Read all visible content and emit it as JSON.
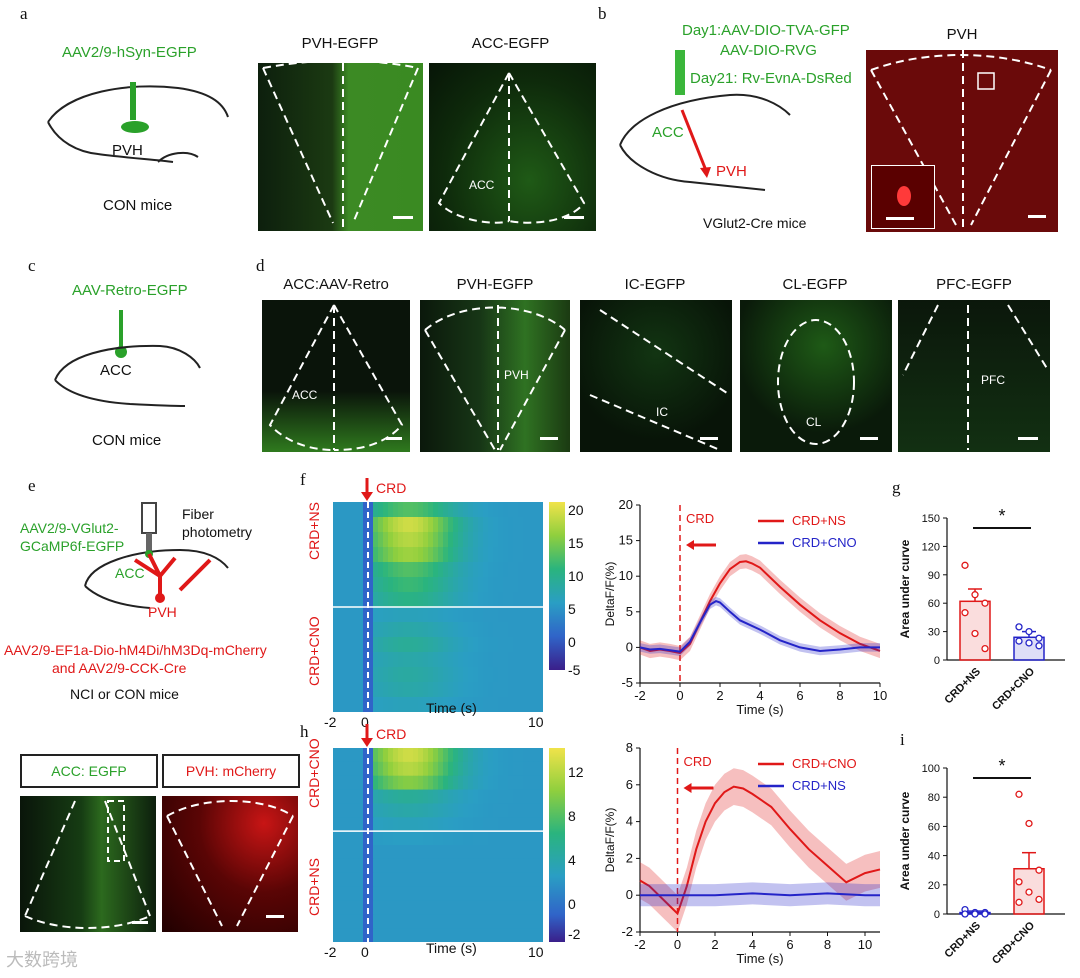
{
  "panels": {
    "a": {
      "letter": "a",
      "virus": "AAV2/9-hSyn-EGFP",
      "region": "PVH",
      "mice": "CON mice",
      "img1_title": "PVH-EGFP",
      "img2_title": "ACC-EGFP",
      "img2_inner": "ACC"
    },
    "b": {
      "letter": "b",
      "line1": "Day1:AAV-DIO-TVA-GFP",
      "line2": "AAV-DIO-RVG",
      "line3": "Day21: Rv-EvnA-DsRed",
      "acc": "ACC",
      "pvh": "PVH",
      "mice": "VGlut2-Cre mice",
      "img_title": "PVH"
    },
    "c": {
      "letter": "c",
      "virus": "AAV-Retro-EGFP",
      "region": "ACC",
      "mice": "CON mice"
    },
    "d": {
      "letter": "d",
      "titles": [
        "ACC:AAV-Retro",
        "PVH-EGFP",
        "IC-EGFP",
        "CL-EGFP",
        "PFC-EGFP"
      ],
      "inner": [
        "ACC",
        "PVH",
        "IC",
        "CL",
        "PFC"
      ]
    },
    "e": {
      "letter": "e",
      "virus_green_1": "AAV2/9-VGlut2-",
      "virus_green_2": "GCaMP6f-EGFP",
      "fiber_1": "Fiber",
      "fiber_2": "photometry",
      "acc": "ACC",
      "pvh": "PVH",
      "red_line1": "AAV2/9-EF1a-Dio-hM4Di/hM3Dq-mCherry",
      "red_line2": "and AAV2/9-CCK-Cre",
      "mice": "NCI or CON mice",
      "box1": "ACC: EGFP",
      "box2": "PVH: mCherry"
    },
    "f": {
      "letter": "f",
      "crd": "CRD",
      "row_top": "CRD+NS",
      "row_bottom": "CRD+CNO",
      "xlabel": "Time (s)",
      "xticks": [
        "-2",
        "0",
        "10"
      ],
      "cbar_ticks": [
        "20",
        "15",
        "10",
        "5",
        "0",
        "-5"
      ],
      "line_ylabel": "DeltaF/F(%)",
      "line_xlabel": "Time (s)",
      "line_yticks": [
        "20",
        "15",
        "10",
        "5",
        "0",
        "-5"
      ],
      "line_xticks": [
        "-2",
        "0",
        "2",
        "4",
        "6",
        "8",
        "10"
      ],
      "legend": [
        "CRD+NS",
        "CRD+CNO"
      ],
      "crd_label": "CRD"
    },
    "g": {
      "letter": "g",
      "ylabel": "Area under curve",
      "yticks": [
        "150",
        "120",
        "90",
        "60",
        "30",
        "0"
      ],
      "sig": "*",
      "cats": [
        "CRD+NS",
        "CRD+CNO"
      ]
    },
    "h": {
      "letter": "h",
      "crd": "CRD",
      "row_top": "CRD+CNO",
      "row_bottom": "CRD+NS",
      "xlabel": "Time (s)",
      "xticks": [
        "-2",
        "0",
        "10"
      ],
      "cbar_ticks": [
        "12",
        "8",
        "4",
        "0",
        "-2"
      ],
      "line_ylabel": "DeltaF/F(%)",
      "line_xlabel": "Time (s)",
      "line_yticks": [
        "8",
        "6",
        "4",
        "2",
        "0",
        "-2"
      ],
      "line_xticks": [
        "-2",
        "0",
        "2",
        "4",
        "6",
        "8",
        "10"
      ],
      "legend": [
        "CRD+CNO",
        "CRD+NS"
      ],
      "crd_label": "CRD"
    },
    "i": {
      "letter": "i",
      "ylabel": "Area under curve",
      "yticks": [
        "100",
        "80",
        "60",
        "40",
        "20",
        "0"
      ],
      "sig": "*",
      "cats": [
        "CRD+NS",
        "CRD+CNO"
      ]
    }
  },
  "watermark": "大数跨境",
  "colors": {
    "green": "#2aa12a",
    "red": "#e01818",
    "blue": "#2424c8"
  },
  "chart_data": [
    {
      "type": "line",
      "id": "f-line",
      "title": "",
      "xlabel": "Time (s)",
      "ylabel": "DeltaF/F(%)",
      "xlim": [
        -2,
        10
      ],
      "ylim": [
        -5,
        20
      ],
      "series": [
        {
          "name": "CRD+NS",
          "color": "#e01818",
          "x": [
            -2,
            -1.5,
            -1,
            -0.5,
            0,
            0.5,
            1,
            1.5,
            2,
            2.5,
            3,
            3.3,
            3.6,
            4,
            5,
            6,
            7,
            8,
            9,
            10
          ],
          "y": [
            0,
            -0.5,
            -0.3,
            -0.5,
            -0.8,
            0.5,
            3.5,
            6.5,
            9,
            11,
            12,
            12.1,
            11.8,
            11.2,
            8.5,
            6,
            3.8,
            2,
            0.5,
            -0.5
          ]
        },
        {
          "name": "CRD+CNO",
          "color": "#2424c8",
          "x": [
            -2,
            -1.5,
            -1,
            -0.5,
            0,
            0.5,
            1,
            1.5,
            1.8,
            2,
            2.5,
            3,
            4,
            5,
            6,
            7,
            8,
            9,
            10
          ],
          "y": [
            0,
            -0.3,
            -0.2,
            -0.4,
            -0.6,
            0.8,
            3.5,
            6,
            6.5,
            6.3,
            5,
            3.8,
            2.5,
            1,
            0,
            -0.5,
            -0.3,
            0,
            0
          ]
        }
      ]
    },
    {
      "type": "bar",
      "id": "g-bar",
      "ylabel": "Area under curve",
      "ylim": [
        0,
        150
      ],
      "categories": [
        "CRD+NS",
        "CRD+CNO"
      ],
      "values": [
        62,
        24
      ],
      "errors": [
        13,
        6
      ],
      "points": [
        [
          100,
          69,
          60,
          50,
          28,
          12
        ],
        [
          35,
          30,
          23,
          20,
          18,
          15
        ]
      ],
      "colors": [
        "#e01818",
        "#2424c8"
      ]
    },
    {
      "type": "line",
      "id": "h-line",
      "xlabel": "Time (s)",
      "ylabel": "DeltaF/F(%)",
      "xlim": [
        -2,
        10.8
      ],
      "ylim": [
        -2,
        8
      ],
      "series": [
        {
          "name": "CRD+CNO",
          "color": "#e01818",
          "x": [
            -2,
            -1.5,
            -1,
            -0.5,
            0,
            0.5,
            1,
            1.5,
            2,
            2.5,
            3,
            3.5,
            4,
            5,
            6,
            7,
            8,
            9,
            10,
            10.8
          ],
          "y": [
            0.8,
            0.5,
            0,
            -0.5,
            -1,
            0.5,
            2.5,
            4,
            5,
            5.6,
            5.9,
            5.8,
            5.5,
            4.8,
            3.6,
            2.5,
            1.6,
            0.7,
            1.2,
            1.4
          ]
        },
        {
          "name": "CRD+NS",
          "color": "#2424c8",
          "x": [
            -2,
            0,
            2,
            4,
            6,
            8,
            10,
            10.8
          ],
          "y": [
            0,
            0,
            0,
            0.1,
            0,
            0.1,
            0,
            0
          ]
        }
      ]
    },
    {
      "type": "bar",
      "id": "i-bar",
      "ylabel": "Area under curve",
      "ylim": [
        0,
        100
      ],
      "categories": [
        "CRD+NS",
        "CRD+CNO"
      ],
      "values": [
        1,
        31
      ],
      "errors": [
        1,
        11
      ],
      "points": [
        [
          3,
          1,
          1,
          0,
          0,
          0
        ],
        [
          82,
          62,
          30,
          22,
          15,
          10,
          8
        ]
      ],
      "colors": [
        "#2424c8",
        "#e01818"
      ]
    }
  ]
}
